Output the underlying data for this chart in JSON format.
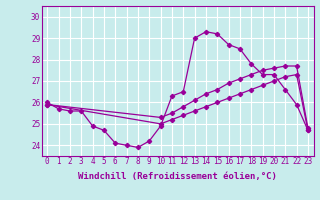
{
  "xlabel": "Windchill (Refroidissement éolien,°C)",
  "bg_color": "#c8ecec",
  "line_color": "#990099",
  "grid_color": "#ffffff",
  "xlim": [
    -0.5,
    23.5
  ],
  "ylim": [
    23.5,
    30.5
  ],
  "yticks": [
    24,
    25,
    26,
    27,
    28,
    29,
    30
  ],
  "xticks": [
    0,
    1,
    2,
    3,
    4,
    5,
    6,
    7,
    8,
    9,
    10,
    11,
    12,
    13,
    14,
    15,
    16,
    17,
    18,
    19,
    20,
    21,
    22,
    23
  ],
  "lines": [
    {
      "x": [
        0,
        1,
        2,
        3,
        4,
        5,
        6,
        7,
        8,
        9,
        10,
        11,
        12,
        13,
        14,
        15,
        16,
        17,
        18,
        19,
        20,
        21,
        22,
        23
      ],
      "y": [
        26.0,
        25.7,
        25.6,
        25.6,
        24.9,
        24.7,
        24.1,
        24.0,
        23.9,
        24.2,
        24.9,
        26.3,
        26.5,
        29.0,
        29.3,
        29.2,
        28.7,
        28.5,
        27.8,
        27.3,
        27.3,
        26.6,
        25.9,
        24.7
      ]
    },
    {
      "x": [
        0,
        10,
        11,
        12,
        13,
        14,
        15,
        16,
        17,
        18,
        19,
        20,
        21,
        22,
        23
      ],
      "y": [
        25.9,
        25.3,
        25.5,
        25.8,
        26.1,
        26.4,
        26.6,
        26.9,
        27.1,
        27.3,
        27.5,
        27.6,
        27.7,
        27.7,
        24.8
      ]
    },
    {
      "x": [
        0,
        10,
        11,
        12,
        13,
        14,
        15,
        16,
        17,
        18,
        19,
        20,
        21,
        22,
        23
      ],
      "y": [
        25.9,
        25.0,
        25.2,
        25.4,
        25.6,
        25.8,
        26.0,
        26.2,
        26.4,
        26.6,
        26.8,
        27.0,
        27.2,
        27.3,
        24.7
      ]
    }
  ],
  "tick_fontsize": 5.5,
  "xlabel_fontsize": 6.5
}
